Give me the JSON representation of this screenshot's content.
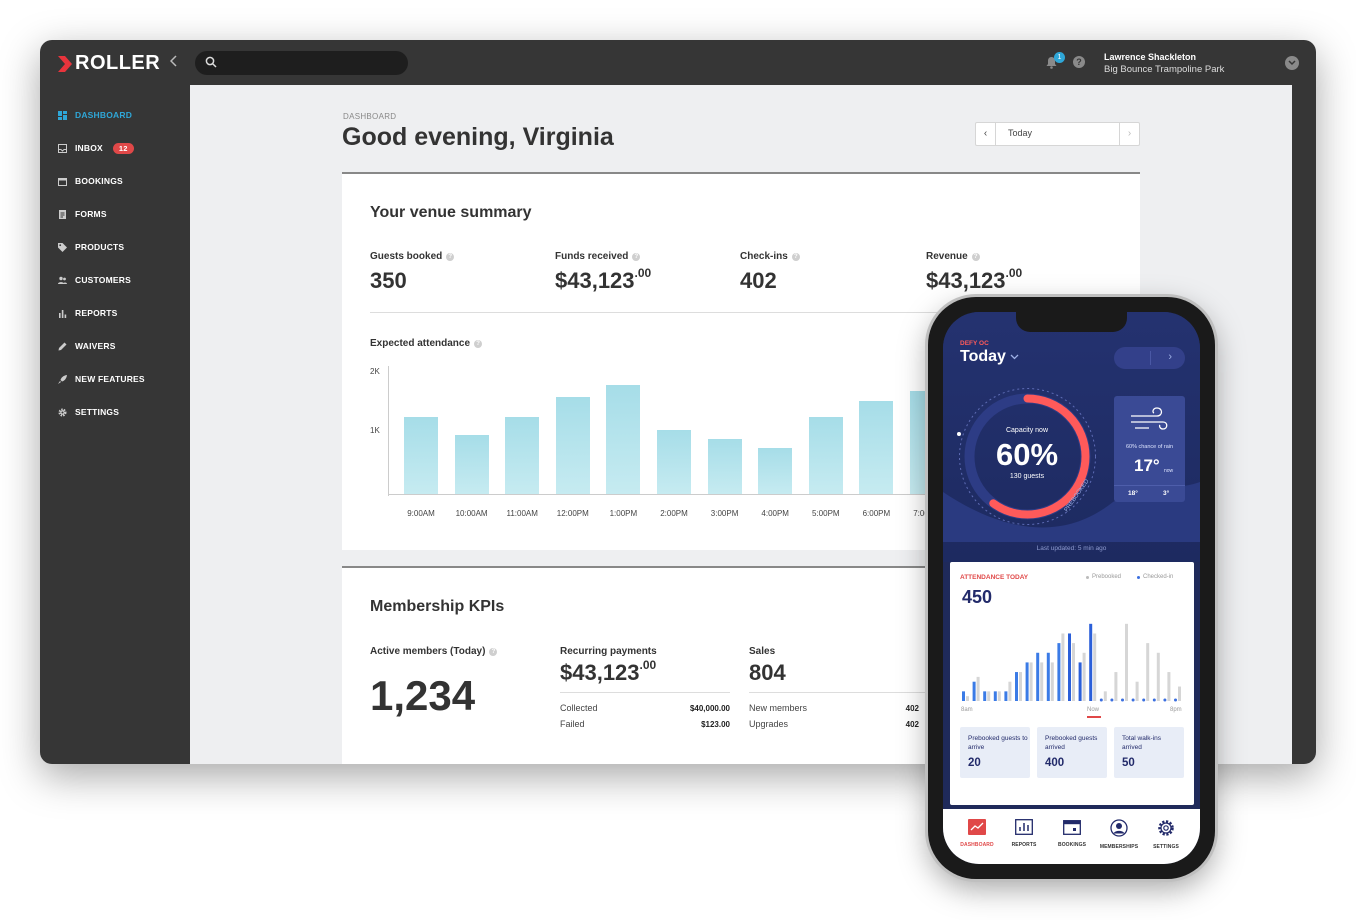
{
  "app": {
    "logo": "ROLLER"
  },
  "search": {
    "placeholder": ""
  },
  "notifications": {
    "count": "1"
  },
  "help": {
    "label": "?"
  },
  "user": {
    "name": "Lawrence Shackleton",
    "venue": "Big Bounce Trampoline Park"
  },
  "sidebar": {
    "items": [
      {
        "label": "DASHBOARD",
        "icon": "dashboard-icon",
        "active": true
      },
      {
        "label": "INBOX",
        "icon": "inbox-icon",
        "badge": "12"
      },
      {
        "label": "BOOKINGS",
        "icon": "calendar-icon"
      },
      {
        "label": "FORMS",
        "icon": "form-icon"
      },
      {
        "label": "PRODUCTS",
        "icon": "tag-icon"
      },
      {
        "label": "CUSTOMERS",
        "icon": "people-icon"
      },
      {
        "label": "REPORTS",
        "icon": "bar-chart-icon"
      },
      {
        "label": "WAIVERS",
        "icon": "pen-icon"
      },
      {
        "label": "NEW FEATURES",
        "icon": "rocket-icon"
      },
      {
        "label": "SETTINGS",
        "icon": "gear-icon"
      }
    ]
  },
  "page": {
    "breadcrumb": "DASHBOARD",
    "greeting": "Good evening, Virginia"
  },
  "datepicker": {
    "value": "Today"
  },
  "summary": {
    "title": "Your venue summary",
    "stats": [
      {
        "label": "Guests booked",
        "value": "350",
        "cents": ""
      },
      {
        "label": "Funds received",
        "value": "$43,123",
        "cents": ".00"
      },
      {
        "label": "Check-ins",
        "value": "402",
        "cents": ""
      },
      {
        "label": "Revenue",
        "value": "$43,123",
        "cents": ".00"
      }
    ]
  },
  "chart_data": [
    {
      "type": "bar",
      "title": "Expected attendance",
      "categories": [
        "9:00AM",
        "10:00AM",
        "11:00AM",
        "12:00PM",
        "1:00PM",
        "2:00PM",
        "3:00PM",
        "4:00PM",
        "5:00PM",
        "6:00PM",
        "7:00PM"
      ],
      "values": [
        1300,
        1000,
        1300,
        1650,
        1850,
        1080,
        930,
        780,
        1300,
        1580,
        1750
      ],
      "yticks": [
        "2K",
        "1K"
      ],
      "ylim": [
        0,
        2200
      ],
      "color": "#b3e3ec"
    },
    {
      "type": "bar",
      "title": "ATTENDANCE TODAY",
      "legend": [
        "Prebooked",
        "Checked-in"
      ],
      "x_start": "8am",
      "x_now": "Now",
      "x_end": "8pm",
      "series": [
        {
          "name": "Checked-in",
          "values": [
            1,
            2,
            1,
            1,
            1,
            3,
            4,
            5,
            5,
            6,
            7,
            4,
            8,
            0,
            0,
            0,
            0,
            0,
            0,
            0,
            0
          ]
        },
        {
          "name": "Prebooked",
          "values": [
            0.5,
            2.5,
            1,
            1,
            2,
            3,
            4,
            4,
            4,
            7,
            6,
            5,
            7,
            1,
            3,
            8,
            2,
            6,
            5,
            3,
            1.5
          ]
        }
      ],
      "ylim": [
        0,
        8.5
      ]
    }
  ],
  "membership": {
    "title": "Membership KPIs",
    "active_label": "Active members (Today)",
    "active_value": "1,234",
    "recurring_label": "Recurring payments",
    "recurring_value": "$43,123",
    "recurring_cents": ".00",
    "collected_label": "Collected",
    "collected_value": "$40,000.00",
    "failed_label": "Failed",
    "failed_value": "$123.00",
    "sales_label": "Sales",
    "sales_value": "804",
    "new_members_label": "New members",
    "new_members_value": "402",
    "upgrades_label": "Upgrades",
    "upgrades_value": "402"
  },
  "mobile": {
    "venue": "DEFY OC",
    "day": "Today",
    "capacity_label": "Capacity now",
    "capacity_value": "60%",
    "capacity_fraction": 0.6,
    "capacity_guests": "130 guests",
    "prebooked_tag": "PREBOOKED",
    "weather": {
      "rain": "60% chance of rain",
      "temp": "17°",
      "now": "now",
      "hi": "18°",
      "lo": "3°"
    },
    "updated": "Last updated: 5 min ago",
    "attendance_title": "ATTENDANCE TODAY",
    "attendance_value": "450",
    "tiles": [
      {
        "label": "Prebooked guests to arrive",
        "value": "20"
      },
      {
        "label": "Prebooked guests arrived",
        "value": "400"
      },
      {
        "label": "Total walk-ins arrived",
        "value": "50"
      }
    ],
    "tabs": [
      "DASHBOARD",
      "REPORTS",
      "BOOKINGS",
      "MEMBERSHIPS",
      "SETTINGS"
    ]
  },
  "colors": {
    "accent": "#2fa7d8",
    "badge": "#e04848",
    "phone_navy": "#1f2a5a",
    "bar": "#b3e3ec"
  }
}
